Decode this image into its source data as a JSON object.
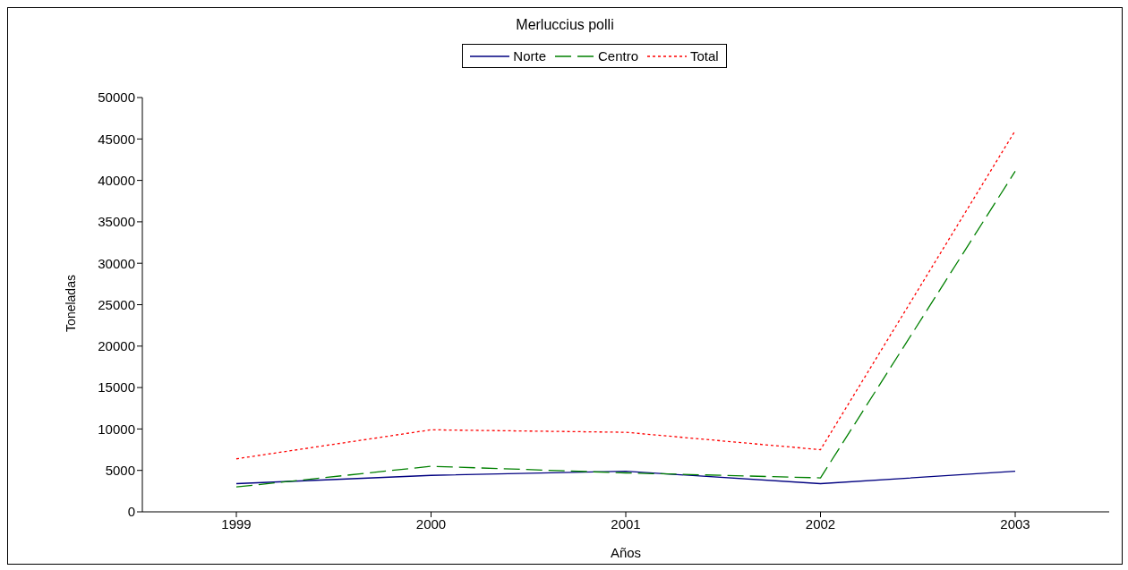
{
  "chart_data": {
    "type": "line",
    "title": "Merluccius polli",
    "xlabel": "Años",
    "ylabel": "Toneladas",
    "categories": [
      "1999",
      "2000",
      "2001",
      "2002",
      "2003"
    ],
    "series": [
      {
        "name": "Norte",
        "color": "#000080",
        "line_style": "solid",
        "values": [
          3400,
          4400,
          4900,
          3400,
          4900
        ]
      },
      {
        "name": "Centro",
        "color": "#008000",
        "line_style": "dashed",
        "values": [
          3000,
          5500,
          4700,
          4100,
          41100
        ]
      },
      {
        "name": "Total",
        "color": "#ff0000",
        "line_style": "dotted",
        "values": [
          6400,
          9900,
          9600,
          7500,
          46000
        ]
      }
    ],
    "ylim": [
      0,
      50000
    ],
    "yticks": [
      0,
      5000,
      10000,
      15000,
      20000,
      25000,
      30000,
      35000,
      40000,
      45000,
      50000
    ],
    "grid": false,
    "legend": "top"
  }
}
